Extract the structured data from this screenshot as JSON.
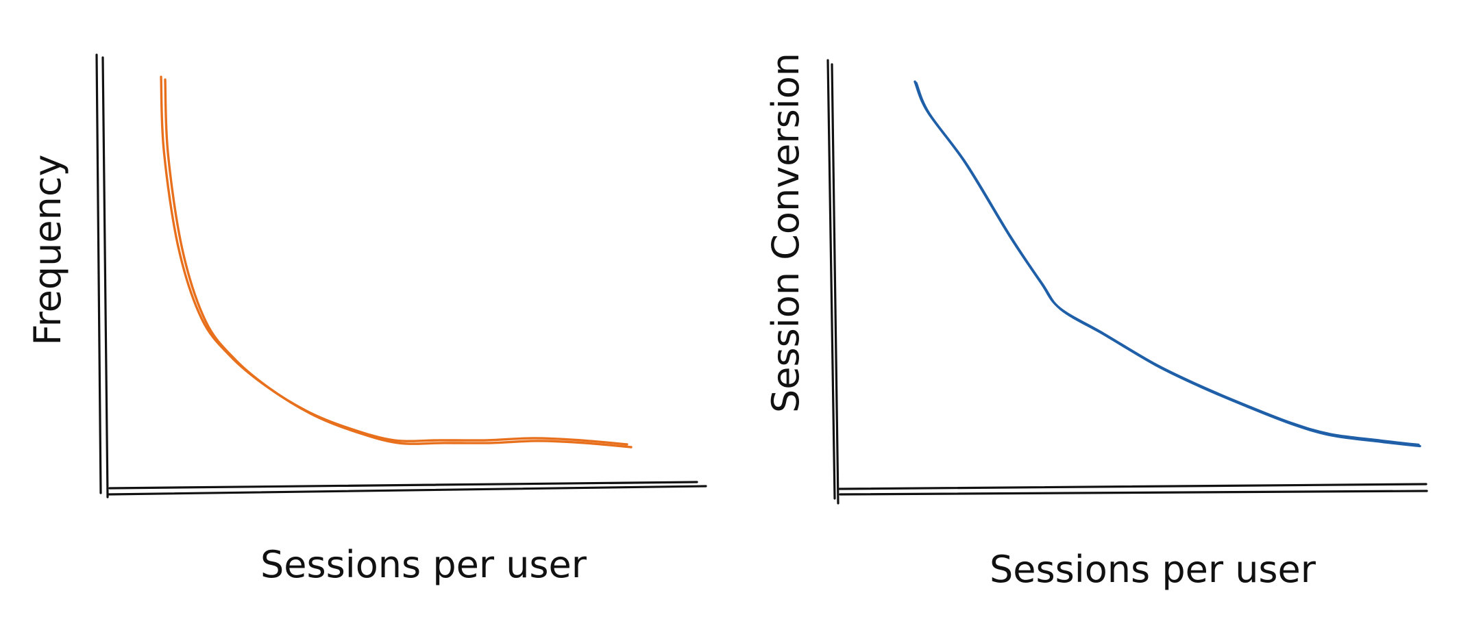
{
  "chart_data": [
    {
      "type": "line",
      "title": "",
      "xlabel": "Sessions per user",
      "ylabel": "Frequency",
      "grid": false,
      "axis_ticks": false,
      "series": [
        {
          "color": "#e8701d",
          "style": "hand-drawn double stroke",
          "x": [
            1,
            1.05,
            1.3,
            1.7,
            2.2,
            2.8,
            3.5,
            4.2,
            5,
            5.8,
            6.6,
            7.4,
            8.2,
            9
          ],
          "y": [
            98,
            80,
            57,
            40,
            31,
            24,
            18,
            14,
            11,
            11,
            11,
            11.5,
            11,
            10
          ]
        }
      ]
    },
    {
      "type": "line",
      "title": "",
      "xlabel": "Sessions per user",
      "ylabel": "Session Conversion",
      "grid": false,
      "axis_ticks": false,
      "series": [
        {
          "color": "#1f5fa8",
          "style": "hand-drawn",
          "x": [
            1,
            1.2,
            1.8,
            2.5,
            3,
            3.3,
            4,
            4.8,
            5.5,
            6.3,
            7,
            7.6,
            8.4,
            9
          ],
          "y": [
            95,
            88,
            76,
            59,
            48,
            42,
            36,
            29,
            24,
            19,
            15,
            12.5,
            11,
            10
          ]
        }
      ]
    }
  ]
}
